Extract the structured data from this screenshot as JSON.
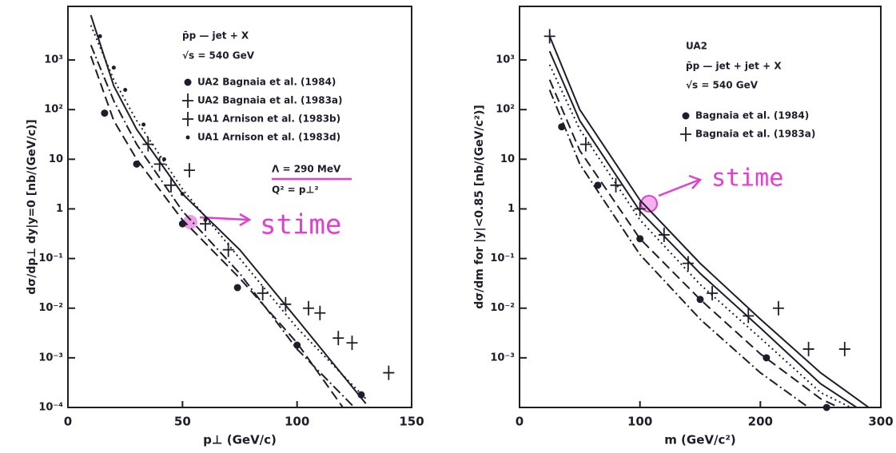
{
  "chart_data": [
    {
      "type": "scatter",
      "log_y": true,
      "xlim": [
        0,
        150
      ],
      "ylim": [
        0.0001,
        12000
      ],
      "xticks": [
        0,
        50,
        100,
        150
      ],
      "yticks": [
        {
          "value": 0.0001,
          "label": "10⁻⁴"
        },
        {
          "value": 0.001,
          "label": "10⁻³"
        },
        {
          "value": 0.01,
          "label": "10⁻²"
        },
        {
          "value": 0.1,
          "label": "10⁻¹"
        },
        1,
        10,
        {
          "value": 100,
          "label": "10²"
        },
        {
          "value": 1000,
          "label": "10³"
        }
      ],
      "xlabel": "p⊥ (GeV/c)",
      "ylabel": "dσ/dp⊥ dy|y=0 [nb/(GeV/c)]",
      "annotations": [
        "p̄p — jet + X",
        "√s = 540 GeV",
        "Λ = 290 MeV",
        "Q² = p⊥²",
        "stime"
      ],
      "series": [
        {
          "name": "UA2 Bagnaia et al. (1984)",
          "marker": "dot",
          "color": "#1d1d2b",
          "x": [
            16,
            30,
            50,
            74,
            100,
            128
          ],
          "values": [
            85,
            8,
            0.5,
            0.026,
            0.0018,
            0.00018
          ]
        },
        {
          "name": "UA2 Bagnaia et al. (1983a)",
          "marker": "cross",
          "color": "#1d1d2b",
          "x": [
            35,
            45,
            60,
            70,
            85
          ],
          "values": [
            20,
            3,
            0.5,
            0.15,
            0.02
          ]
        },
        {
          "name": "UA1 Arnison et al. (1983b)",
          "marker": "cross",
          "color": "#1d1d2b",
          "x": [
            40,
            53,
            95,
            105,
            110,
            118,
            124,
            140
          ],
          "values": [
            8,
            6,
            0.012,
            0.01,
            0.008,
            0.0025,
            0.002,
            0.0005
          ]
        },
        {
          "name": "UA1 Arnison et al. (1983d)",
          "marker": "smalldot",
          "color": "#1d1d2b",
          "x": [
            14,
            20,
            25,
            33,
            42,
            50,
            60
          ],
          "values": [
            3000,
            700,
            250,
            50,
            10,
            2,
            0.6
          ]
        }
      ],
      "curves": [
        {
          "dash": "solid",
          "color": "#1d1d2b",
          "x": [
            10,
            20,
            30,
            50,
            75,
            100,
            130
          ],
          "values": [
            8000,
            300,
            40,
            2,
            0.15,
            0.006,
            0.00012
          ]
        },
        {
          "dash": "dotted",
          "color": "#1d1d2b",
          "x": [
            10,
            20,
            30,
            50,
            75,
            100,
            130
          ],
          "values": [
            5000,
            400,
            60,
            2.5,
            0.1,
            0.004,
            0.00015
          ]
        },
        {
          "dash": "dashdot",
          "color": "#1d1d2b",
          "x": [
            10,
            20,
            30,
            50,
            75,
            100,
            125
          ],
          "values": [
            2000,
            150,
            20,
            0.9,
            0.05,
            0.0015,
            0.0001
          ]
        },
        {
          "dash": "dashed",
          "color": "#1d1d2b",
          "x": [
            10,
            20,
            30,
            50,
            75,
            100,
            120
          ],
          "values": [
            1200,
            60,
            10,
            0.6,
            0.04,
            0.002,
            0.0001
          ]
        }
      ]
    },
    {
      "type": "scatter",
      "log_y": true,
      "xlim": [
        0,
        300
      ],
      "ylim": [
        0.0001,
        12000
      ],
      "xticks": [
        0,
        100,
        200,
        300
      ],
      "yticks": [
        {
          "value": 0.001,
          "label": "10⁻³"
        },
        {
          "value": 0.01,
          "label": "10⁻²"
        },
        {
          "value": 0.1,
          "label": "10⁻¹"
        },
        1,
        10,
        {
          "value": 100,
          "label": "10²"
        },
        {
          "value": 1000,
          "label": "10³"
        }
      ],
      "xlabel": "m (GeV/c²)",
      "ylabel": "dσ/dm for |y|<0.85 [nb/(GeV/c²)]",
      "annotations": [
        "UA2",
        "p̄p — jet + jet + X",
        "√s = 540 GeV",
        "stime"
      ],
      "series": [
        {
          "name": "Bagnaia et al. (1984)",
          "marker": "dot",
          "color": "#1d1d2b",
          "x": [
            35,
            65,
            100,
            150,
            205,
            255
          ],
          "values": [
            45,
            3,
            0.25,
            0.015,
            0.001,
            0.0001
          ]
        },
        {
          "name": "Bagnaia et al. (1983a)",
          "marker": "cross",
          "color": "#1d1d2b",
          "x": [
            25,
            55,
            80,
            100,
            120,
            140,
            160,
            190,
            215,
            240,
            270
          ],
          "values": [
            3000,
            20,
            3,
            1,
            0.3,
            0.08,
            0.02,
            0.007,
            0.01,
            0.0015,
            0.0015
          ]
        }
      ],
      "curves": [
        {
          "dash": "solid",
          "color": "#1d1d2b",
          "x": [
            25,
            50,
            100,
            150,
            200,
            250,
            290
          ],
          "values": [
            3000,
            100,
            1.5,
            0.08,
            0.006,
            0.0005,
            0.0001
          ]
        },
        {
          "dash": "solid",
          "color": "#1d1d2b",
          "x": [
            25,
            50,
            100,
            150,
            200,
            250,
            280
          ],
          "values": [
            1500,
            60,
            0.9,
            0.05,
            0.004,
            0.0003,
            0.0001
          ]
        },
        {
          "dash": "dotted",
          "color": "#1d1d2b",
          "x": [
            25,
            50,
            100,
            150,
            200,
            250,
            275
          ],
          "values": [
            800,
            40,
            0.6,
            0.03,
            0.0025,
            0.0002,
            0.0001
          ]
        },
        {
          "dash": "dashed",
          "color": "#1d1d2b",
          "x": [
            25,
            50,
            100,
            150,
            200,
            250,
            265
          ],
          "values": [
            400,
            15,
            0.25,
            0.015,
            0.0012,
            0.00015,
            0.0001
          ]
        },
        {
          "dash": "dashdot",
          "color": "#1d1d2b",
          "x": [
            25,
            50,
            100,
            150,
            200,
            240
          ],
          "values": [
            250,
            8,
            0.12,
            0.006,
            0.0005,
            0.0001
          ]
        }
      ]
    }
  ]
}
